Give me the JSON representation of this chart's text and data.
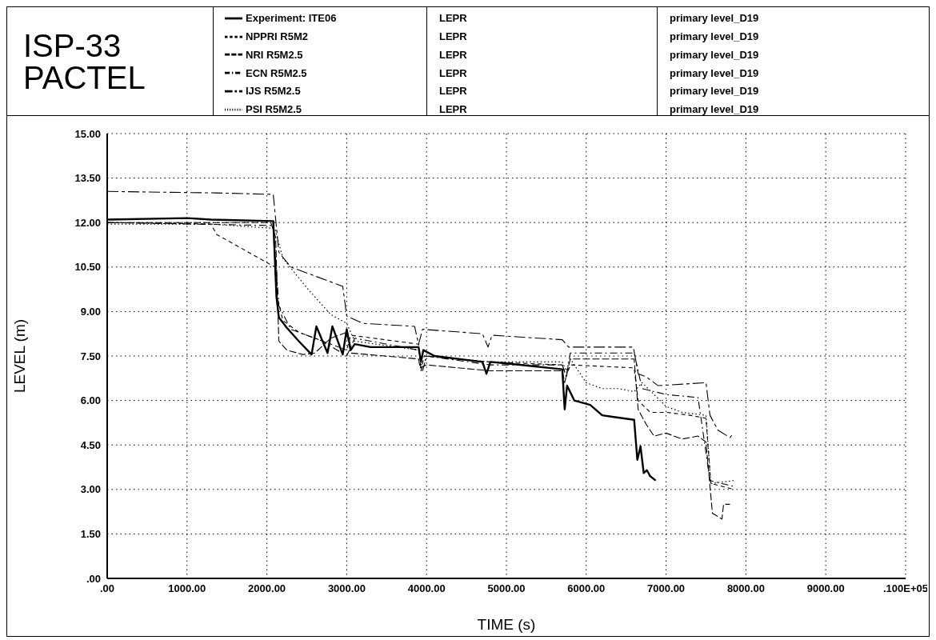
{
  "chart_data": {
    "type": "line",
    "title": "ISP-33 PACTEL",
    "xlabel": "TIME (s)",
    "ylabel": "LEVEL (m)",
    "annotations": [
      "LEPR",
      "primary level_D19",
      "LEPR",
      "primary level_D19",
      "LEPR",
      "primary level_D19",
      "LEPR",
      "primary level_D19",
      "LEPR",
      "primary level_D19",
      "LEPR",
      "primary level_D19"
    ],
    "xlim": [
      0,
      10000
    ],
    "ylim": [
      0,
      15
    ],
    "xticks": [
      {
        "value": 0,
        "label": ".00"
      },
      {
        "value": 1000,
        "label": "1000.00"
      },
      {
        "value": 2000,
        "label": "2000.00"
      },
      {
        "value": 3000,
        "label": "3000.00"
      },
      {
        "value": 4000,
        "label": "4000.00"
      },
      {
        "value": 5000,
        "label": "5000.00"
      },
      {
        "value": 6000,
        "label": "6000.00"
      },
      {
        "value": 7000,
        "label": "7000.00"
      },
      {
        "value": 8000,
        "label": "8000.00"
      },
      {
        "value": 9000,
        "label": "9000.00"
      },
      {
        "value": 10000,
        "label": ".100E+05"
      }
    ],
    "yticks": [
      {
        "value": 0,
        "label": ".00"
      },
      {
        "value": 1.5,
        "label": "1.50"
      },
      {
        "value": 3,
        "label": "3.00"
      },
      {
        "value": 4.5,
        "label": "4.50"
      },
      {
        "value": 6,
        "label": "6.00"
      },
      {
        "value": 7.5,
        "label": "7.50"
      },
      {
        "value": 9,
        "label": "9.00"
      },
      {
        "value": 10.5,
        "label": "10.50"
      },
      {
        "value": 12,
        "label": "12.00"
      },
      {
        "value": 13.5,
        "label": "13.50"
      },
      {
        "value": 15,
        "label": "15.00"
      }
    ],
    "grid": true,
    "legend": "top",
    "marker": "none",
    "series": [
      {
        "name": "Experiment: ITE06",
        "color": "#000000",
        "line_style": "solid",
        "x": [
          0,
          1000,
          1300,
          2080,
          2120,
          2150,
          2250,
          2400,
          2560,
          2620,
          2760,
          2820,
          2950,
          3000,
          3050,
          3100,
          3300,
          3900,
          3930,
          3960,
          4100,
          4700,
          4750,
          4800,
          5000,
          5700,
          5730,
          5760,
          5850,
          6050,
          6200,
          6600,
          6640,
          6680,
          6720,
          6760,
          6800,
          6870
        ],
        "values": [
          12.1,
          12.15,
          12.1,
          12.05,
          9.5,
          8.8,
          8.45,
          8.0,
          7.55,
          8.5,
          7.6,
          8.5,
          7.55,
          8.4,
          7.7,
          7.9,
          7.8,
          7.8,
          7.3,
          7.7,
          7.5,
          7.3,
          6.9,
          7.3,
          7.25,
          7.05,
          5.7,
          6.5,
          6.0,
          5.85,
          5.5,
          5.35,
          4.0,
          4.45,
          3.55,
          3.65,
          3.45,
          3.3
        ]
      },
      {
        "name": "NPPRI R5M2",
        "color": "#000000",
        "line_style": "dashed",
        "x": [
          0,
          1300,
          1370,
          2100,
          2130,
          2200,
          2400,
          2700,
          3000,
          3050,
          3900,
          3930,
          3970,
          4800,
          5700,
          5750,
          5800,
          6600,
          6650,
          6800,
          7000,
          7300,
          7500,
          7560,
          7850
        ],
        "values": [
          12.0,
          11.95,
          11.6,
          10.5,
          9.5,
          8.7,
          8.3,
          8.0,
          7.7,
          8.2,
          7.9,
          7.0,
          7.5,
          7.3,
          7.2,
          6.8,
          7.2,
          7.1,
          6.0,
          5.6,
          5.6,
          5.5,
          5.4,
          3.2,
          3.0
        ]
      },
      {
        "name": "NRI R5M2.5",
        "color": "#000000",
        "line_style": "dashed",
        "x": [
          0,
          2050,
          2110,
          2150,
          2250,
          2450,
          2600,
          2800,
          3000,
          3050,
          3900,
          3920,
          4000,
          4800,
          5700,
          5730,
          5800,
          6600,
          6650,
          6750,
          6850,
          7000,
          7200,
          7400,
          7500,
          7580,
          7700,
          7720,
          7800
        ],
        "values": [
          12.0,
          12.0,
          11.5,
          8.0,
          7.7,
          7.55,
          7.6,
          8.1,
          8.3,
          7.6,
          7.4,
          7.1,
          7.2,
          7.0,
          7.0,
          6.6,
          7.4,
          7.4,
          5.7,
          5.2,
          4.8,
          4.9,
          4.7,
          4.8,
          4.6,
          2.2,
          2.0,
          2.5,
          2.5
        ]
      },
      {
        "name": "ECN R5M2.5",
        "color": "#000000",
        "line_style": "dashed",
        "x": [
          0,
          2080,
          2150,
          2300,
          2700,
          3000,
          3100,
          3900,
          3950,
          4000,
          4800,
          5700,
          5750,
          5800,
          6600,
          6700,
          7000,
          7400,
          7550,
          7850
        ],
        "values": [
          12.0,
          11.9,
          9.2,
          8.4,
          8.0,
          7.5,
          8.1,
          7.7,
          7.0,
          7.5,
          7.2,
          7.2,
          6.8,
          7.6,
          7.6,
          6.4,
          6.2,
          6.1,
          3.3,
          3.1
        ]
      },
      {
        "name": "IJS R5M2.5",
        "color": "#000000",
        "line_style": "dashed",
        "x": [
          0,
          1350,
          2080,
          2150,
          2300,
          2950,
          3000,
          3200,
          3850,
          3900,
          3950,
          4700,
          4770,
          4820,
          5700,
          5780,
          6590,
          6650,
          6750,
          6900,
          7500,
          7550,
          7650,
          7800,
          7850
        ],
        "values": [
          13.05,
          13.0,
          12.95,
          11.0,
          10.5,
          9.85,
          8.85,
          8.6,
          8.5,
          7.9,
          8.4,
          8.25,
          7.8,
          8.2,
          8.05,
          7.8,
          7.8,
          6.9,
          6.8,
          6.5,
          6.6,
          5.5,
          5.0,
          4.75,
          4.9
        ]
      },
      {
        "name": "PSI R5M2.5",
        "color": "#000000",
        "line_style": "dotted",
        "x": [
          0,
          1300,
          2100,
          2200,
          2500,
          2800,
          3000,
          3100,
          3900,
          3950,
          4000,
          4800,
          5700,
          5750,
          5800,
          6000,
          6200,
          6400,
          6600,
          6700,
          7000,
          7200,
          7500,
          7560,
          7850
        ],
        "values": [
          11.95,
          11.95,
          11.8,
          10.8,
          9.8,
          8.9,
          8.6,
          8.0,
          7.7,
          7.0,
          7.5,
          7.3,
          7.3,
          7.0,
          7.4,
          6.6,
          6.4,
          6.4,
          6.3,
          6.6,
          5.8,
          5.6,
          5.5,
          3.2,
          3.3
        ]
      }
    ]
  }
}
